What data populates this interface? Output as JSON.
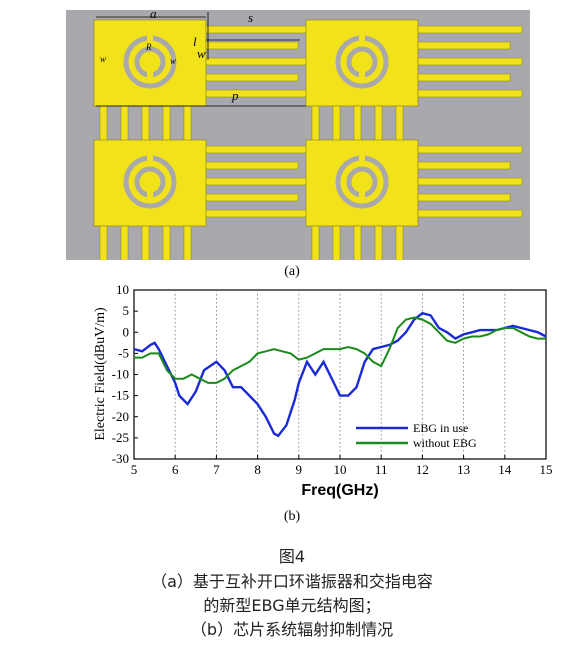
{
  "figure": {
    "panel_a_label": "(a)",
    "panel_b_label": "(b)",
    "dimension_labels": [
      "a",
      "w",
      "s",
      "l",
      "R",
      "w",
      "w",
      "p"
    ]
  },
  "caption": {
    "title": "图4",
    "line1": "（a）基于互补开口环谐振器和交指电容",
    "line2": "的新型EBG单元结构图；",
    "line3": "（b）芯片系统辐射抑制情况"
  },
  "chart_data": {
    "type": "line",
    "xlabel": "Freq(GHz)",
    "ylabel": "Electric Field(dBuV/m)",
    "xlim": [
      5,
      15
    ],
    "ylim": [
      -30,
      10
    ],
    "xticks": [
      "5",
      "6",
      "7",
      "8",
      "9",
      "10",
      "11",
      "12",
      "13",
      "14",
      "15"
    ],
    "yticks": [
      "10",
      "5",
      "0",
      "-5",
      "-10",
      "-15",
      "-20",
      "-25",
      "-30"
    ],
    "grid": "vertical dotted",
    "legend_position": "bottom-right",
    "colors": {
      "ebg": "#1a2bd6",
      "no_ebg": "#1a8a1a"
    },
    "series": [
      {
        "name": "EBG in use",
        "x": [
          5,
          5.2,
          5.4,
          5.5,
          5.6,
          5.8,
          6,
          6.1,
          6.3,
          6.5,
          6.7,
          7,
          7.2,
          7.4,
          7.6,
          7.8,
          8,
          8.2,
          8.4,
          8.5,
          8.7,
          8.9,
          9,
          9.2,
          9.4,
          9.6,
          9.8,
          10,
          10.2,
          10.4,
          10.6,
          10.8,
          11,
          11.2,
          11.4,
          11.6,
          11.8,
          12,
          12.2,
          12.4,
          12.6,
          12.8,
          13,
          13.2,
          13.4,
          13.6,
          13.8,
          14,
          14.2,
          14.4,
          14.6,
          14.8,
          15
        ],
        "values": [
          -4,
          -4.5,
          -3,
          -2.5,
          -4,
          -8,
          -12,
          -15,
          -17,
          -14,
          -9,
          -7,
          -9,
          -13,
          -13,
          -15,
          -17,
          -20,
          -24,
          -24.5,
          -22,
          -16,
          -12,
          -7,
          -10,
          -7,
          -11,
          -15,
          -15,
          -13,
          -7,
          -4,
          -3.5,
          -3,
          -2,
          0,
          3,
          4.5,
          4,
          1,
          0,
          -1.5,
          -0.5,
          0,
          0.5,
          0.5,
          0.5,
          1,
          1.5,
          1,
          0.5,
          0,
          -1
        ]
      },
      {
        "name": "without EBG",
        "x": [
          5,
          5.2,
          5.4,
          5.6,
          5.8,
          6,
          6.2,
          6.4,
          6.6,
          6.8,
          7,
          7.2,
          7.4,
          7.6,
          7.8,
          8,
          8.2,
          8.4,
          8.6,
          8.8,
          9,
          9.2,
          9.4,
          9.6,
          9.8,
          10,
          10.2,
          10.4,
          10.6,
          10.8,
          11,
          11.2,
          11.4,
          11.6,
          11.8,
          12,
          12.2,
          12.4,
          12.6,
          12.8,
          13,
          13.2,
          13.4,
          13.6,
          13.8,
          14,
          14.2,
          14.4,
          14.6,
          14.8,
          15
        ],
        "values": [
          -6,
          -6,
          -5,
          -5,
          -9,
          -11,
          -11,
          -10,
          -11,
          -12,
          -12,
          -11,
          -9,
          -8,
          -7,
          -5,
          -4.5,
          -4,
          -4.5,
          -5,
          -6.5,
          -6,
          -5,
          -4,
          -4,
          -4,
          -3.5,
          -4,
          -5,
          -7,
          -8,
          -4,
          1,
          3,
          3.5,
          3,
          2,
          0,
          -2,
          -2.5,
          -1.5,
          -1,
          -1,
          -0.5,
          0.5,
          1,
          1,
          0,
          -1,
          -1.5,
          -1.5
        ]
      }
    ]
  }
}
